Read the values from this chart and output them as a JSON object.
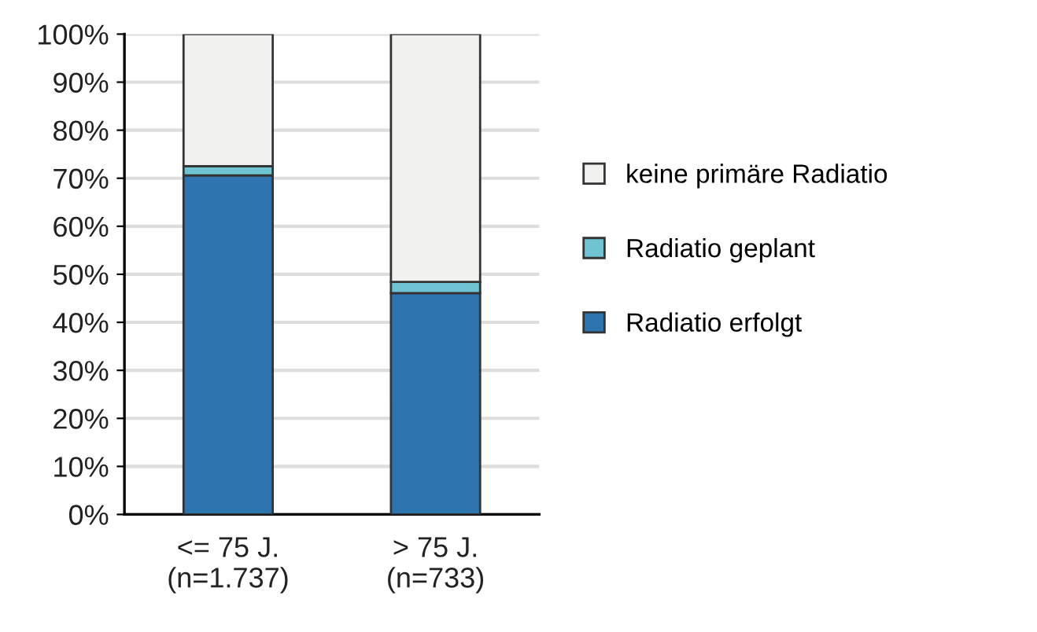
{
  "chart_data": {
    "type": "bar",
    "stacked": true,
    "categories": [
      "<= 75 J.\n(n=1.737)",
      "> 75 J.\n(n=733)"
    ],
    "series": [
      {
        "name": "Radiatio erfolgt",
        "color": "#2e75b0",
        "values": [
          70.6,
          46.1
        ]
      },
      {
        "name": "Radiatio geplant",
        "color": "#6fc3d2",
        "values": [
          1.9,
          2.3
        ]
      },
      {
        "name": "keine primäre Radiatio",
        "color": "#f1f1ef",
        "values": [
          27.5,
          51.6
        ]
      }
    ],
    "ylim": [
      0,
      100
    ],
    "yticks": [
      {
        "value": 0,
        "label": "0%"
      },
      {
        "value": 10,
        "label": "10%"
      },
      {
        "value": 20,
        "label": "20%"
      },
      {
        "value": 30,
        "label": "30%"
      },
      {
        "value": 40,
        "label": "40%"
      },
      {
        "value": 50,
        "label": "50%"
      },
      {
        "value": 60,
        "label": "60%"
      },
      {
        "value": 70,
        "label": "70%"
      },
      {
        "value": 80,
        "label": "80%"
      },
      {
        "value": 90,
        "label": "90%"
      },
      {
        "value": 100,
        "label": "100%"
      }
    ],
    "grid": "y",
    "legend": "right"
  }
}
